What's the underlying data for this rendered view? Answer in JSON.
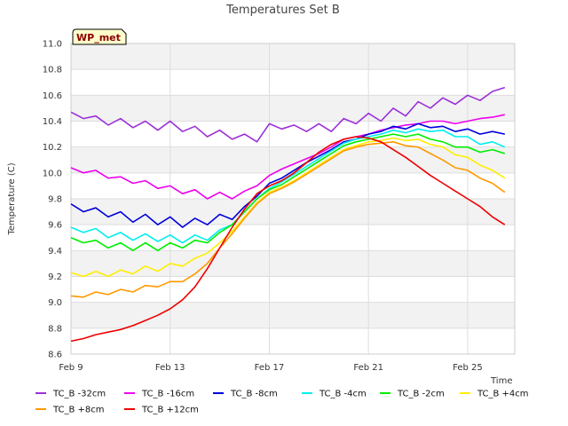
{
  "chart_data": {
    "type": "line",
    "title": "Temperatures Set B",
    "xlabel": "Time",
    "ylabel": "Temperature (C)",
    "badge": "WP_met",
    "xlim": [
      0,
      17.9
    ],
    "ylim": [
      8.6,
      11.0
    ],
    "x_ticks": [
      {
        "x": 0,
        "label": "Feb 9"
      },
      {
        "x": 4,
        "label": "Feb 13"
      },
      {
        "x": 8,
        "label": "Feb 17"
      },
      {
        "x": 12,
        "label": "Feb 21"
      },
      {
        "x": 16,
        "label": "Feb 25"
      }
    ],
    "y_ticks": [
      "8.6",
      "8.8",
      "9.0",
      "9.2",
      "9.4",
      "9.6",
      "9.8",
      "10.0",
      "10.2",
      "10.4",
      "10.6",
      "10.8",
      "11.0"
    ],
    "grid": true,
    "legend_position": "bottom",
    "series": [
      {
        "name": "TC_B -32cm",
        "color": "#9b30d9",
        "x": [
          0.0,
          0.5,
          1.0,
          1.5,
          2.0,
          2.5,
          3.0,
          3.5,
          4.0,
          4.5,
          5.0,
          5.5,
          6.0,
          6.5,
          7.0,
          7.5,
          8.0,
          8.5,
          9.0,
          9.5,
          10.0,
          10.5,
          11.0,
          11.5,
          12.0,
          12.5,
          13.0,
          13.5,
          14.0,
          14.5,
          15.0,
          15.5,
          16.0,
          16.5,
          17.0,
          17.5
        ],
        "values": [
          10.47,
          10.42,
          10.44,
          10.37,
          10.42,
          10.35,
          10.4,
          10.33,
          10.4,
          10.32,
          10.36,
          10.28,
          10.33,
          10.26,
          10.3,
          10.24,
          10.38,
          10.34,
          10.37,
          10.32,
          10.38,
          10.32,
          10.42,
          10.38,
          10.46,
          10.4,
          10.5,
          10.44,
          10.55,
          10.5,
          10.58,
          10.53,
          10.6,
          10.56,
          10.63,
          10.66
        ]
      },
      {
        "name": "TC_B -16cm",
        "color": "#ee00ee",
        "x": [
          0.0,
          0.5,
          1.0,
          1.5,
          2.0,
          2.5,
          3.0,
          3.5,
          4.0,
          4.5,
          5.0,
          5.5,
          6.0,
          6.5,
          7.0,
          7.5,
          8.0,
          8.5,
          9.0,
          9.5,
          10.0,
          10.5,
          11.0,
          11.5,
          12.0,
          12.5,
          13.0,
          13.5,
          14.0,
          14.5,
          15.0,
          15.5,
          16.0,
          16.5,
          17.0,
          17.5
        ],
        "values": [
          10.04,
          10.0,
          10.02,
          9.96,
          9.97,
          9.92,
          9.94,
          9.88,
          9.9,
          9.84,
          9.87,
          9.8,
          9.85,
          9.8,
          9.86,
          9.9,
          9.98,
          10.03,
          10.07,
          10.11,
          10.15,
          10.2,
          10.26,
          10.28,
          10.3,
          10.33,
          10.35,
          10.37,
          10.38,
          10.4,
          10.4,
          10.38,
          10.4,
          10.42,
          10.43,
          10.45
        ]
      },
      {
        "name": "TC_B -8cm",
        "color": "#0000dd",
        "x": [
          0.0,
          0.5,
          1.0,
          1.5,
          2.0,
          2.5,
          3.0,
          3.5,
          4.0,
          4.5,
          5.0,
          5.5,
          6.0,
          6.5,
          7.0,
          7.5,
          8.0,
          8.5,
          9.0,
          9.5,
          10.0,
          10.5,
          11.0,
          11.5,
          12.0,
          12.5,
          13.0,
          13.5,
          14.0,
          14.5,
          15.0,
          15.5,
          16.0,
          16.5,
          17.0,
          17.5
        ],
        "values": [
          9.76,
          9.7,
          9.73,
          9.66,
          9.7,
          9.62,
          9.68,
          9.6,
          9.66,
          9.58,
          9.65,
          9.6,
          9.68,
          9.64,
          9.74,
          9.82,
          9.92,
          9.96,
          10.02,
          10.08,
          10.13,
          10.18,
          10.24,
          10.26,
          10.3,
          10.32,
          10.36,
          10.34,
          10.38,
          10.35,
          10.36,
          10.32,
          10.34,
          10.3,
          10.32,
          10.3
        ]
      },
      {
        "name": "TC_B -4cm",
        "color": "#00eeee",
        "x": [
          0.0,
          0.5,
          1.0,
          1.5,
          2.0,
          2.5,
          3.0,
          3.5,
          4.0,
          4.5,
          5.0,
          5.5,
          6.0,
          6.5,
          7.0,
          7.5,
          8.0,
          8.5,
          9.0,
          9.5,
          10.0,
          10.5,
          11.0,
          11.5,
          12.0,
          12.5,
          13.0,
          13.5,
          14.0,
          14.5,
          15.0,
          15.5,
          16.0,
          16.5,
          17.0,
          17.5
        ],
        "values": [
          9.58,
          9.54,
          9.57,
          9.5,
          9.54,
          9.48,
          9.53,
          9.47,
          9.52,
          9.46,
          9.52,
          9.48,
          9.56,
          9.6,
          9.7,
          9.8,
          9.88,
          9.93,
          9.99,
          10.05,
          10.11,
          10.17,
          10.23,
          10.26,
          10.28,
          10.3,
          10.33,
          10.31,
          10.34,
          10.32,
          10.33,
          10.28,
          10.28,
          10.22,
          10.24,
          10.2
        ]
      },
      {
        "name": "TC_B -2cm",
        "color": "#00ee00",
        "x": [
          0.0,
          0.5,
          1.0,
          1.5,
          2.0,
          2.5,
          3.0,
          3.5,
          4.0,
          4.5,
          5.0,
          5.5,
          6.0,
          6.5,
          7.0,
          7.5,
          8.0,
          8.5,
          9.0,
          9.5,
          10.0,
          10.5,
          11.0,
          11.5,
          12.0,
          12.5,
          13.0,
          13.5,
          14.0,
          14.5,
          15.0,
          15.5,
          16.0,
          16.5,
          17.0,
          17.5
        ],
        "values": [
          9.5,
          9.46,
          9.48,
          9.42,
          9.46,
          9.4,
          9.46,
          9.4,
          9.46,
          9.42,
          9.48,
          9.46,
          9.54,
          9.6,
          9.7,
          9.8,
          9.87,
          9.91,
          9.97,
          10.03,
          10.09,
          10.15,
          10.21,
          10.24,
          10.26,
          10.28,
          10.3,
          10.28,
          10.3,
          10.26,
          10.24,
          10.2,
          10.2,
          10.16,
          10.18,
          10.15
        ]
      },
      {
        "name": "TC_B +4cm",
        "color": "#ffee00",
        "x": [
          0.0,
          0.5,
          1.0,
          1.5,
          2.0,
          2.5,
          3.0,
          3.5,
          4.0,
          4.5,
          5.0,
          5.5,
          6.0,
          6.5,
          7.0,
          7.5,
          8.0,
          8.5,
          9.0,
          9.5,
          10.0,
          10.5,
          11.0,
          11.5,
          12.0,
          12.5,
          13.0,
          13.5,
          14.0,
          14.5,
          15.0,
          15.5,
          16.0,
          16.5,
          17.0,
          17.5
        ],
        "values": [
          9.23,
          9.2,
          9.24,
          9.2,
          9.25,
          9.22,
          9.28,
          9.24,
          9.3,
          9.28,
          9.34,
          9.38,
          9.46,
          9.55,
          9.66,
          9.77,
          9.85,
          9.89,
          9.94,
          10.0,
          10.06,
          10.12,
          10.18,
          10.21,
          10.24,
          10.25,
          10.27,
          10.25,
          10.26,
          10.22,
          10.2,
          10.14,
          10.12,
          10.06,
          10.02,
          9.96
        ]
      },
      {
        "name": "TC_B +8cm",
        "color": "#ff9900",
        "x": [
          0.0,
          0.5,
          1.0,
          1.5,
          2.0,
          2.5,
          3.0,
          3.5,
          4.0,
          4.5,
          5.0,
          5.5,
          6.0,
          6.5,
          7.0,
          7.5,
          8.0,
          8.5,
          9.0,
          9.5,
          10.0,
          10.5,
          11.0,
          11.5,
          12.0,
          12.5,
          13.0,
          13.5,
          14.0,
          14.5,
          15.0,
          15.5,
          16.0,
          16.5,
          17.0,
          17.5
        ],
        "values": [
          9.05,
          9.04,
          9.08,
          9.06,
          9.1,
          9.08,
          9.13,
          9.12,
          9.16,
          9.16,
          9.22,
          9.3,
          9.42,
          9.53,
          9.65,
          9.76,
          9.84,
          9.88,
          9.93,
          9.99,
          10.05,
          10.11,
          10.17,
          10.2,
          10.22,
          10.23,
          10.24,
          10.21,
          10.2,
          10.15,
          10.1,
          10.04,
          10.02,
          9.96,
          9.92,
          9.85
        ]
      },
      {
        "name": "TC_B +12cm",
        "color": "#ee0000",
        "x": [
          0.0,
          0.5,
          1.0,
          1.5,
          2.0,
          2.5,
          3.0,
          3.5,
          4.0,
          4.5,
          5.0,
          5.5,
          6.0,
          6.5,
          7.0,
          7.5,
          8.0,
          8.5,
          9.0,
          9.5,
          10.0,
          10.5,
          11.0,
          11.5,
          12.0,
          12.5,
          13.0,
          13.5,
          14.0,
          14.5,
          15.0,
          15.5,
          16.0,
          16.5,
          17.0,
          17.5
        ],
        "values": [
          8.7,
          8.72,
          8.75,
          8.77,
          8.79,
          8.82,
          8.86,
          8.9,
          8.95,
          9.02,
          9.12,
          9.26,
          9.42,
          9.58,
          9.72,
          9.84,
          9.9,
          9.94,
          10.0,
          10.08,
          10.16,
          10.22,
          10.26,
          10.28,
          10.27,
          10.24,
          10.18,
          10.12,
          10.05,
          9.98,
          9.92,
          9.86,
          9.8,
          9.74,
          9.66,
          9.6
        ]
      }
    ]
  }
}
